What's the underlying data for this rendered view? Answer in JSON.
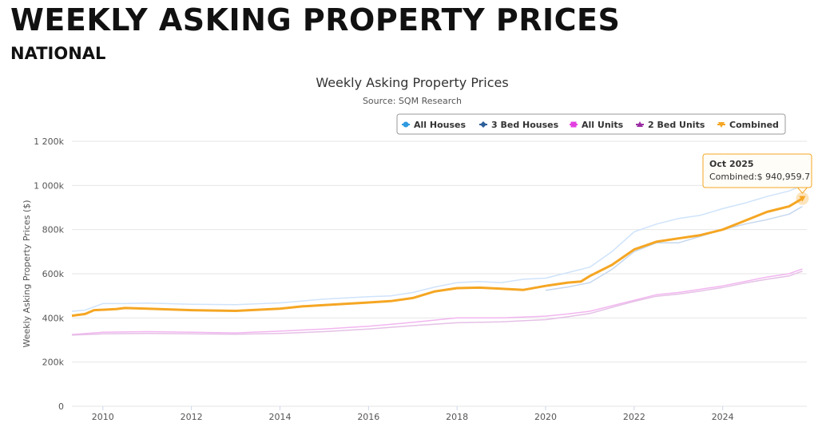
{
  "page": {
    "title": "WEEKLY ASKING PROPERTY PRICES",
    "subtitle": "NATIONAL"
  },
  "chart_data": {
    "type": "line",
    "title": "Weekly Asking Property Prices",
    "subtitle": "Source: SQM Research",
    "ylabel": "Weekly Asking Property Prices ($)",
    "xlabel": "",
    "xlim": [
      2009.3,
      2025.9
    ],
    "ylim": [
      0,
      1200000
    ],
    "yticks": [
      0,
      200000,
      400000,
      600000,
      800000,
      1000000,
      1200000
    ],
    "ytick_labels": [
      "0",
      "200k",
      "400k",
      "600k",
      "800k",
      "1 000k",
      "1 200k"
    ],
    "xticks": [
      2010,
      2012,
      2014,
      2016,
      2018,
      2020,
      2022,
      2024
    ],
    "xtick_labels": [
      "2010",
      "2012",
      "2014",
      "2016",
      "2018",
      "2020",
      "2022",
      "2024"
    ],
    "grid": "horizontal",
    "legend_position": "top-right",
    "series": [
      {
        "name": "All Houses",
        "color": "#cfe3fb",
        "marker": "circle",
        "legend_color": "#2f9ae0",
        "x": [
          2009.3,
          2009.6,
          2010,
          2010.5,
          2011,
          2012,
          2013,
          2014,
          2015,
          2016,
          2016.5,
          2017,
          2017.5,
          2018,
          2018.5,
          2019,
          2019.5,
          2020,
          2020.5,
          2021,
          2021.5,
          2022,
          2022.5,
          2023,
          2023.5,
          2024,
          2024.5,
          2025,
          2025.5,
          2025.8
        ],
        "y": [
          430000,
          435000,
          465000,
          465000,
          467000,
          462000,
          460000,
          468000,
          485000,
          496000,
          500000,
          515000,
          540000,
          560000,
          565000,
          560000,
          575000,
          580000,
          605000,
          630000,
          700000,
          790000,
          825000,
          850000,
          865000,
          895000,
          920000,
          950000,
          975000,
          1000000
        ]
      },
      {
        "name": "3 Bed Houses",
        "color": "#c5d7ee",
        "marker": "diamond",
        "legend_color": "#2d5f99",
        "x": [
          2020,
          2020.5,
          2021,
          2021.5,
          2022,
          2022.5,
          2023,
          2023.5,
          2024,
          2024.5,
          2025,
          2025.5,
          2025.8
        ],
        "y": [
          525000,
          540000,
          560000,
          620000,
          700000,
          740000,
          740000,
          770000,
          800000,
          825000,
          845000,
          870000,
          905000
        ]
      },
      {
        "name": "All Units",
        "color": "#f2b6f0",
        "marker": "square",
        "legend_color": "#e23fe0",
        "x": [
          2009.3,
          2010,
          2011,
          2012,
          2013,
          2014,
          2015,
          2016,
          2017,
          2018,
          2019,
          2020,
          2020.5,
          2021,
          2021.5,
          2022,
          2022.5,
          2023,
          2023.5,
          2024,
          2024.5,
          2025,
          2025.5,
          2025.8
        ],
        "y": [
          325000,
          335000,
          338000,
          335000,
          332000,
          340000,
          350000,
          362000,
          380000,
          400000,
          400000,
          408000,
          418000,
          430000,
          455000,
          480000,
          505000,
          515000,
          530000,
          545000,
          565000,
          585000,
          600000,
          622000
        ]
      },
      {
        "name": "2 Bed Units",
        "color": "#e5c0e6",
        "marker": "triangle",
        "legend_color": "#9b2fa3",
        "x": [
          2009.3,
          2010,
          2011,
          2012,
          2013,
          2014,
          2015,
          2016,
          2017,
          2018,
          2019,
          2020,
          2020.5,
          2021,
          2021.5,
          2022,
          2022.5,
          2023,
          2023.5,
          2024,
          2024.5,
          2025,
          2025.5,
          2025.8
        ],
        "y": [
          322000,
          328000,
          330000,
          328000,
          326000,
          330000,
          338000,
          350000,
          365000,
          378000,
          382000,
          392000,
          405000,
          420000,
          448000,
          475000,
          498000,
          508000,
          522000,
          538000,
          558000,
          575000,
          590000,
          612000
        ]
      },
      {
        "name": "Combined",
        "color": "#f5a623",
        "marker": "triangle-down",
        "legend_color": "#f5a623",
        "x": [
          2009.3,
          2009.6,
          2009.8,
          2010,
          2010.3,
          2010.5,
          2011,
          2012,
          2013,
          2014,
          2014.5,
          2015,
          2016,
          2016.5,
          2017,
          2017.5,
          2018,
          2018.5,
          2019,
          2019.5,
          2020,
          2020.5,
          2020.8,
          2021,
          2021.5,
          2022,
          2022.5,
          2023,
          2023.5,
          2024,
          2024.5,
          2025,
          2025.5,
          2025.8
        ],
        "y": [
          410000,
          418000,
          435000,
          437000,
          440000,
          445000,
          442000,
          435000,
          432000,
          442000,
          452000,
          458000,
          470000,
          476000,
          490000,
          520000,
          535000,
          537000,
          532000,
          527000,
          545000,
          560000,
          565000,
          590000,
          640000,
          710000,
          745000,
          760000,
          775000,
          800000,
          840000,
          880000,
          905000,
          940960
        ]
      }
    ],
    "tooltip": {
      "title": "Oct 2025",
      "label": "Combined:",
      "value": "$ 940,959.7",
      "x": 2025.8,
      "y": 940959.7
    }
  }
}
